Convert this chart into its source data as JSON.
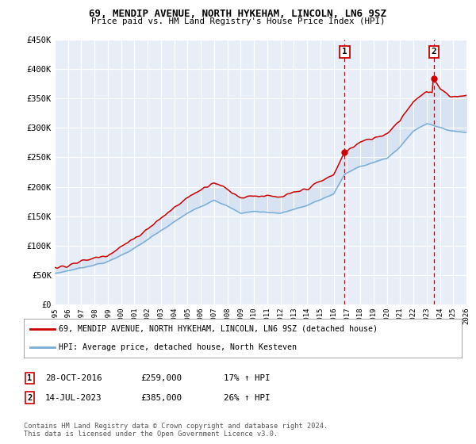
{
  "title": "69, MENDIP AVENUE, NORTH HYKEHAM, LINCOLN, LN6 9SZ",
  "subtitle": "Price paid vs. HM Land Registry's House Price Index (HPI)",
  "legend_line1": "69, MENDIP AVENUE, NORTH HYKEHAM, LINCOLN, LN6 9SZ (detached house)",
  "legend_line2": "HPI: Average price, detached house, North Kesteven",
  "footnote1": "Contains HM Land Registry data © Crown copyright and database right 2024.",
  "footnote2": "This data is licensed under the Open Government Licence v3.0.",
  "sale1_date": "28-OCT-2016",
  "sale1_price": "£259,000",
  "sale1_hpi": "17% ↑ HPI",
  "sale1_year": 2016.83,
  "sale1_value": 259000,
  "sale2_date": "14-JUL-2023",
  "sale2_price": "£385,000",
  "sale2_hpi": "26% ↑ HPI",
  "sale2_year": 2023.54,
  "sale2_value": 385000,
  "ylim": [
    0,
    450000
  ],
  "xlim": [
    1995,
    2026
  ],
  "yticks": [
    0,
    50000,
    100000,
    150000,
    200000,
    250000,
    300000,
    350000,
    400000,
    450000
  ],
  "ytick_labels": [
    "£0",
    "£50K",
    "£100K",
    "£150K",
    "£200K",
    "£250K",
    "£300K",
    "£350K",
    "£400K",
    "£450K"
  ],
  "xticks": [
    1995,
    1996,
    1997,
    1998,
    1999,
    2000,
    2001,
    2002,
    2003,
    2004,
    2005,
    2006,
    2007,
    2008,
    2009,
    2010,
    2011,
    2012,
    2013,
    2014,
    2015,
    2016,
    2017,
    2018,
    2019,
    2020,
    2021,
    2022,
    2023,
    2024,
    2025,
    2026
  ],
  "bg_color": "#e8eef7",
  "grid_color": "#ffffff",
  "red_color": "#cc0000",
  "blue_color": "#7aaed6",
  "fill_color": "#ccddf0"
}
